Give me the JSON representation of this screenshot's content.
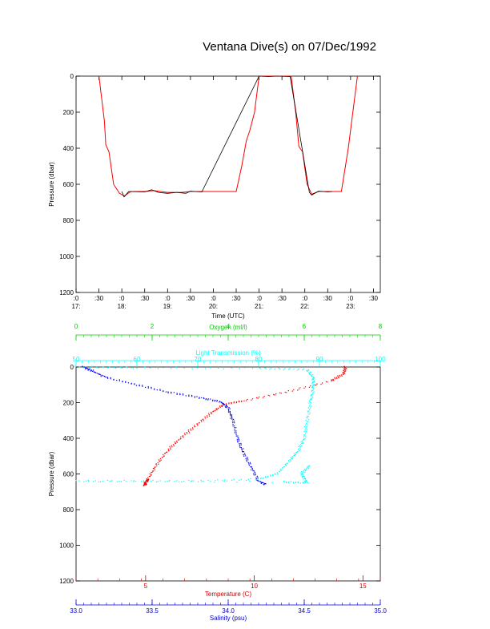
{
  "title": "Ventana Dive(s) on 07/Dec/1992",
  "chart_data": [
    {
      "type": "line",
      "title": "Ventana Dive(s) on 07/Dec/1992",
      "xlabel": "Time (UTC)",
      "ylabel": "Pressure (dbar)",
      "y_reversed": true,
      "ylim": [
        0,
        1200
      ],
      "y_ticks": [
        0,
        200,
        400,
        600,
        800,
        1000,
        1200
      ],
      "x_ticks": [
        {
          "t": 17.0,
          "top": ":0",
          "bottom": "17:"
        },
        {
          "t": 17.5,
          "top": ":30",
          "bottom": ""
        },
        {
          "t": 18.0,
          "top": ":0",
          "bottom": "18:"
        },
        {
          "t": 18.5,
          "top": ":30",
          "bottom": ""
        },
        {
          "t": 19.0,
          "top": ":0",
          "bottom": "19:"
        },
        {
          "t": 19.5,
          "top": ":30",
          "bottom": ""
        },
        {
          "t": 20.0,
          "top": ":0",
          "bottom": "20:"
        },
        {
          "t": 20.5,
          "top": ":30",
          "bottom": ""
        },
        {
          "t": 21.0,
          "top": ":0",
          "bottom": "21:"
        },
        {
          "t": 21.5,
          "top": ":30",
          "bottom": ""
        },
        {
          "t": 22.0,
          "top": ":0",
          "bottom": "22:"
        },
        {
          "t": 22.5,
          "top": ":30",
          "bottom": ""
        },
        {
          "t": 23.0,
          "top": ":0",
          "bottom": "23:"
        },
        {
          "t": 23.5,
          "top": ":30",
          "bottom": ""
        }
      ],
      "xlim": [
        17.0,
        23.65
      ],
      "series": [
        {
          "color": "#ff0000",
          "points": [
            [
              17.5,
              0
            ],
            [
              17.62,
              250
            ],
            [
              17.65,
              380
            ],
            [
              17.72,
              420
            ],
            [
              17.82,
              600
            ],
            [
              17.95,
              650
            ],
            [
              18.05,
              665
            ],
            [
              18.2,
              640
            ],
            [
              18.5,
              640
            ],
            [
              18.7,
              635
            ],
            [
              19.0,
              645
            ],
            [
              19.3,
              645
            ],
            [
              19.5,
              640
            ],
            [
              19.8,
              640
            ],
            [
              20.1,
              640
            ],
            [
              20.5,
              640
            ],
            [
              20.62,
              500
            ],
            [
              20.72,
              360
            ],
            [
              20.8,
              300
            ],
            [
              20.9,
              200
            ],
            [
              21.0,
              0
            ],
            [
              21.7,
              0
            ],
            [
              21.8,
              200
            ],
            [
              21.87,
              390
            ],
            [
              21.95,
              420
            ],
            [
              22.05,
              600
            ],
            [
              22.15,
              655
            ],
            [
              22.3,
              640
            ],
            [
              22.5,
              640
            ],
            [
              22.8,
              640
            ],
            [
              22.95,
              400
            ],
            [
              23.05,
              200
            ],
            [
              23.15,
              0
            ]
          ]
        },
        {
          "color": "#000000",
          "points": [
            [
              18.0,
              640
            ],
            [
              18.05,
              670
            ],
            [
              18.15,
              640
            ],
            [
              18.5,
              642
            ],
            [
              18.65,
              630
            ],
            [
              18.8,
              645
            ],
            [
              19.0,
              650
            ],
            [
              19.2,
              645
            ],
            [
              19.4,
              650
            ],
            [
              19.5,
              638
            ],
            [
              19.6,
              640
            ],
            [
              19.75,
              642
            ],
            [
              21.0,
              0
            ],
            [
              21.2,
              2
            ],
            [
              21.4,
              0
            ],
            [
              21.68,
              2
            ],
            [
              22.1,
              645
            ],
            [
              22.15,
              660
            ],
            [
              22.3,
              638
            ],
            [
              22.5,
              642
            ],
            [
              22.6,
              640
            ]
          ]
        }
      ]
    },
    {
      "type": "scatter",
      "ylabel": "Pressure (dbar)",
      "y_reversed": true,
      "ylim": [
        0,
        1200
      ],
      "y_ticks": [
        0,
        200,
        400,
        600,
        800,
        1000,
        1200
      ],
      "axes": {
        "oxygen": {
          "label": "Oxygen (ml/l)",
          "color": "#00cc00",
          "range": [
            0,
            8
          ],
          "ticks": [
            0,
            2,
            4,
            6,
            8
          ]
        },
        "light": {
          "label": "Light Transmission (%)",
          "color": "#00ffff",
          "range": [
            50,
            100
          ],
          "ticks": [
            50,
            60,
            70,
            80,
            90,
            100
          ]
        },
        "temperature": {
          "label": "Temperature (C)",
          "color": "#cc0000",
          "range": [
            1.8,
            15.8
          ],
          "ticks": [
            5,
            10,
            15
          ]
        },
        "salinity": {
          "label": "Salinity (psu)",
          "color": "#0000cc",
          "range": [
            33.0,
            35.0
          ],
          "ticks": [
            "33.0",
            "33.5",
            "34.0",
            "34.5",
            "35.0"
          ]
        }
      },
      "series": [
        {
          "name": "Temperature",
          "axis": "temperature",
          "color": "#ff0000",
          "points": [
            [
              14.2,
              0
            ],
            [
              14.1,
              40
            ],
            [
              13.5,
              80
            ],
            [
              11.5,
              140
            ],
            [
              9.5,
              190
            ],
            [
              8.6,
              210
            ],
            [
              8.0,
              260
            ],
            [
              7.3,
              330
            ],
            [
              6.6,
              400
            ],
            [
              6.0,
              470
            ],
            [
              5.5,
              550
            ],
            [
              5.1,
              630
            ],
            [
              5.0,
              650
            ],
            [
              4.95,
              665
            ]
          ]
        },
        {
          "name": "Salinity",
          "axis": "salinity",
          "color": "#0000ff",
          "points": [
            [
              33.05,
              0
            ],
            [
              33.1,
              20
            ],
            [
              33.2,
              60
            ],
            [
              33.4,
              100
            ],
            [
              33.6,
              140
            ],
            [
              33.8,
              170
            ],
            [
              33.95,
              195
            ],
            [
              34.0,
              230
            ],
            [
              34.03,
              300
            ],
            [
              34.06,
              400
            ],
            [
              34.1,
              480
            ],
            [
              34.15,
              560
            ],
            [
              34.2,
              640
            ],
            [
              34.25,
              660
            ]
          ]
        },
        {
          "name": "Light Transmission",
          "axis": "light",
          "color": "#00ffff",
          "points": [
            [
              50,
              0
            ],
            [
              60,
              5
            ],
            [
              80,
              8
            ],
            [
              88,
              15
            ],
            [
              89,
              60
            ],
            [
              89,
              120
            ],
            [
              88.5,
              200
            ],
            [
              88,
              300
            ],
            [
              87.5,
              400
            ],
            [
              86.5,
              470
            ],
            [
              85,
              530
            ],
            [
              83,
              600
            ],
            [
              80,
              630
            ],
            [
              70,
              640
            ],
            [
              60,
              640
            ],
            [
              50,
              640
            ],
            [
              84,
              645
            ],
            [
              88,
              650
            ],
            [
              87,
              600
            ],
            [
              88.5,
              550
            ]
          ]
        }
      ]
    }
  ]
}
